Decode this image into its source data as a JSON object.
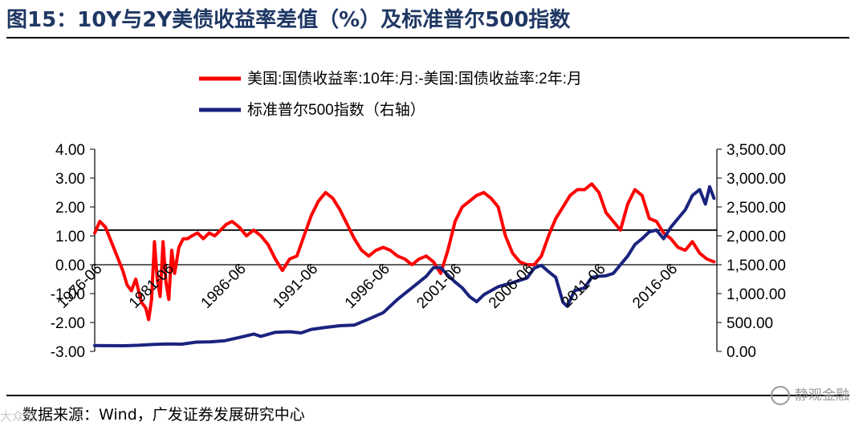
{
  "header": {
    "title": "图15：10Y与2Y美债收益率差值（%）及标准普尔500指数"
  },
  "footer": {
    "source": "数据来源：Wind，广发证券发展研究中心",
    "watermark": "静观金融",
    "watermark_small": "大众号"
  },
  "colors": {
    "spread": "#ff0000",
    "sp500": "#1a237e",
    "title": "#1f3763",
    "zero_ref": "#000000"
  },
  "chart_data": {
    "type": "line",
    "legend": [
      "美国:国债收益率:10年:月:-美国:国债收益率:2年:月",
      "标准普尔500指数（右轴）"
    ],
    "legend_placement": "top-center",
    "grid": false,
    "x_tick_labels": [
      "1976-06",
      "1981-06",
      "1986-06",
      "1991-06",
      "1996-06",
      "2001-06",
      "2006-06",
      "2011-06",
      "2016-06"
    ],
    "y_left": {
      "ticks": [
        "4.00",
        "3.00",
        "2.00",
        "1.00",
        "0.00",
        "-1.00",
        "-2.00",
        "-3.00"
      ],
      "range": [
        -3,
        4
      ]
    },
    "y_right": {
      "ticks": [
        "3,500.00",
        "3,000.00",
        "2,500.00",
        "2,000.00",
        "1,500.00",
        "1,000.00",
        "500.00",
        "0.00"
      ],
      "range": [
        0,
        3500
      ]
    },
    "reference_line": 1.2,
    "x_range": [
      1976.45,
      2019.7
    ],
    "series": [
      {
        "name": "美国:国债收益率:10年:月:-美国:国债收益率:2年:月",
        "axis": "left",
        "x": [
          1976.45,
          1976.8,
          1977.2,
          1977.6,
          1978.0,
          1978.4,
          1978.7,
          1979.0,
          1979.3,
          1979.7,
          1980.0,
          1980.2,
          1980.4,
          1980.6,
          1980.8,
          1981.0,
          1981.2,
          1981.4,
          1981.6,
          1981.8,
          1982.0,
          1982.3,
          1982.6,
          1982.9,
          1983.2,
          1983.6,
          1984.0,
          1984.4,
          1984.8,
          1985.2,
          1985.6,
          1986.0,
          1986.5,
          1987.0,
          1987.5,
          1988.0,
          1988.5,
          1989.0,
          1989.5,
          1990.0,
          1990.5,
          1991.0,
          1991.5,
          1992.0,
          1992.5,
          1993.0,
          1993.5,
          1994.0,
          1994.5,
          1995.0,
          1995.5,
          1996.0,
          1996.5,
          1997.0,
          1997.5,
          1998.0,
          1998.5,
          1999.0,
          1999.5,
          2000.0,
          2000.5,
          2001.0,
          2001.5,
          2002.0,
          2002.5,
          2003.0,
          2003.5,
          2004.0,
          2004.5,
          2005.0,
          2005.5,
          2006.0,
          2006.5,
          2007.0,
          2007.5,
          2008.0,
          2008.5,
          2009.0,
          2009.5,
          2010.0,
          2010.5,
          2011.0,
          2011.5,
          2012.0,
          2012.5,
          2013.0,
          2013.5,
          2014.0,
          2014.5,
          2015.0,
          2015.5,
          2016.0,
          2016.5,
          2017.0,
          2017.5,
          2018.0,
          2018.5,
          2019.0,
          2019.5
        ],
        "values": [
          1.1,
          1.5,
          1.3,
          0.8,
          0.3,
          -0.2,
          -0.7,
          -0.9,
          -0.5,
          -1.3,
          -1.5,
          -1.9,
          -1.2,
          0.8,
          -0.5,
          -1.1,
          0.8,
          -0.6,
          -1.2,
          0.5,
          -0.3,
          0.6,
          0.9,
          0.9,
          1.0,
          1.1,
          0.9,
          1.1,
          1.0,
          1.2,
          1.4,
          1.5,
          1.3,
          1.0,
          1.2,
          1.0,
          0.7,
          0.2,
          -0.2,
          0.2,
          0.3,
          1.0,
          1.7,
          2.2,
          2.5,
          2.3,
          1.9,
          1.4,
          0.9,
          0.5,
          0.3,
          0.5,
          0.6,
          0.5,
          0.3,
          0.2,
          0.0,
          0.2,
          0.3,
          0.1,
          -0.3,
          0.5,
          1.5,
          2.0,
          2.2,
          2.4,
          2.5,
          2.3,
          2.0,
          1.0,
          0.4,
          0.1,
          0.0,
          0.0,
          0.3,
          1.0,
          1.6,
          2.0,
          2.4,
          2.6,
          2.6,
          2.8,
          2.5,
          1.8,
          1.5,
          1.2,
          2.1,
          2.6,
          2.4,
          1.6,
          1.5,
          1.1,
          0.9,
          0.6,
          0.5,
          0.8,
          0.4,
          0.2,
          0.1
        ]
      },
      {
        "name": "标准普尔500指数（右轴）",
        "axis": "right",
        "x": [
          1976.45,
          1977.5,
          1978.5,
          1979.5,
          1980.5,
          1981.5,
          1982.5,
          1983.5,
          1984.5,
          1985.5,
          1986.5,
          1987.5,
          1988.0,
          1989.0,
          1990.0,
          1990.8,
          1991.5,
          1992.5,
          1993.5,
          1994.5,
          1995.5,
          1996.5,
          1997.5,
          1998.5,
          1999.5,
          2000.0,
          2000.5,
          2001.0,
          2001.5,
          2002.0,
          2002.5,
          2003.0,
          2003.5,
          2004.5,
          2005.5,
          2006.5,
          2007.0,
          2007.5,
          2008.0,
          2008.5,
          2009.0,
          2009.3,
          2009.8,
          2010.5,
          2011.0,
          2011.5,
          2012.0,
          2012.5,
          2013.0,
          2013.5,
          2014.0,
          2014.5,
          2015.0,
          2015.5,
          2016.0,
          2016.5,
          2017.0,
          2017.5,
          2018.0,
          2018.5,
          2018.9,
          2019.2,
          2019.5
        ],
        "values": [
          100,
          98,
          97,
          105,
          120,
          128,
          125,
          160,
          165,
          185,
          240,
          300,
          260,
          330,
          340,
          320,
          380,
          415,
          445,
          455,
          560,
          670,
          900,
          1100,
          1300,
          1450,
          1450,
          1320,
          1200,
          1100,
          950,
          860,
          980,
          1120,
          1190,
          1270,
          1440,
          1490,
          1380,
          1280,
          850,
          780,
          1050,
          1100,
          1280,
          1300,
          1310,
          1350,
          1500,
          1650,
          1850,
          1950,
          2070,
          2100,
          1950,
          2150,
          2300,
          2450,
          2700,
          2800,
          2550,
          2850,
          2650
        ]
      }
    ]
  }
}
